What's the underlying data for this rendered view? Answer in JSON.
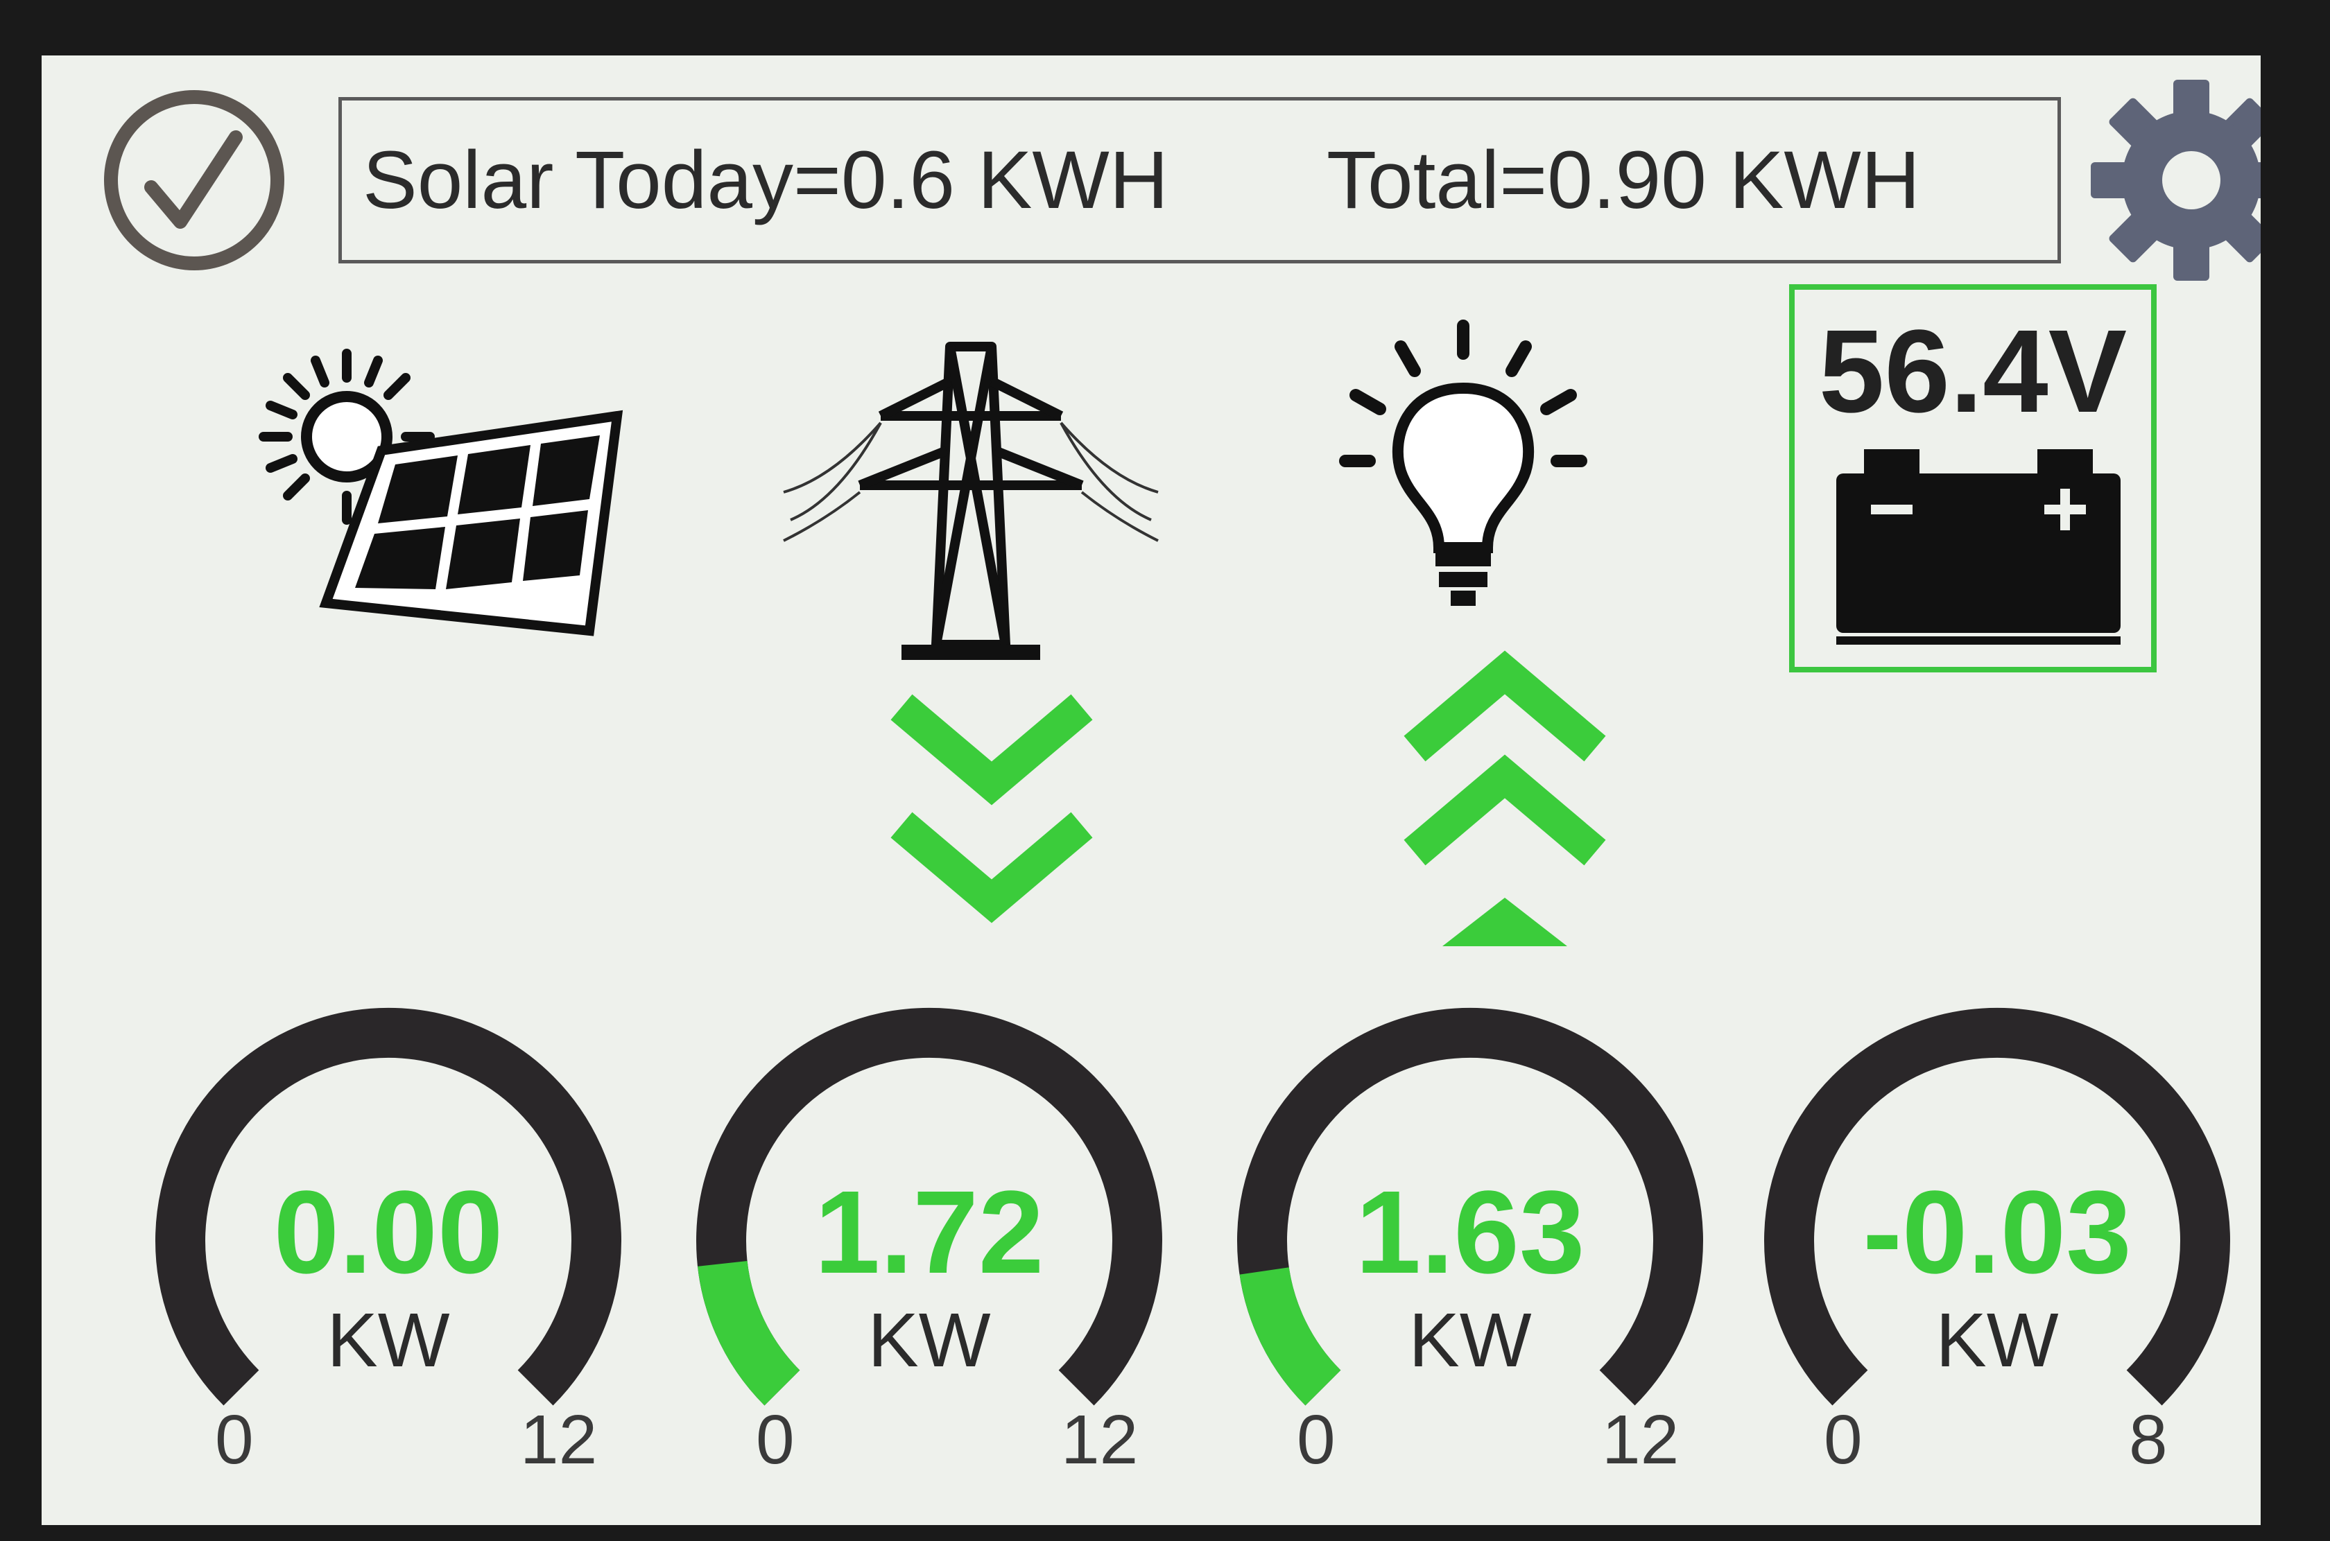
{
  "header": {
    "solar_today": "Solar Today=0.6 KWH",
    "total": "Total=0.90 KWH"
  },
  "icons": {
    "status": "checkmark-circle-icon",
    "settings": "gear-icon",
    "solar": "solar-panel-icon",
    "grid": "power-tower-icon",
    "load": "light-bulb-icon",
    "battery": "battery-icon"
  },
  "battery": {
    "voltage": "56.4V"
  },
  "flows": {
    "grid": "down",
    "load": "up"
  },
  "gauges": [
    {
      "id": "solar",
      "value": "0.00",
      "numeric": 0.0,
      "unit": "KW",
      "min": "0",
      "max": "12",
      "max_value": 12
    },
    {
      "id": "grid",
      "value": "1.72",
      "numeric": 1.72,
      "unit": "KW",
      "min": "0",
      "max": "12",
      "max_value": 12
    },
    {
      "id": "load",
      "value": "1.63",
      "numeric": 1.63,
      "unit": "KW",
      "min": "0",
      "max": "12",
      "max_value": 12
    },
    {
      "id": "battery",
      "value": "-0.03",
      "numeric": -0.03,
      "unit": "KW",
      "min": "0",
      "max": "8",
      "max_value": 8
    }
  ],
  "colors": {
    "accent": "#3bcc3b",
    "track": "#2a2729",
    "screen_bg": "#eef1ec",
    "gear": "#5e6478"
  }
}
